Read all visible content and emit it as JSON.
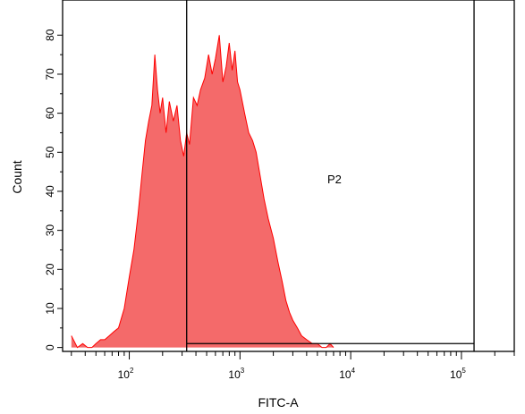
{
  "chart_data": {
    "type": "area",
    "xlabel": "FITC-A",
    "ylabel": "Count",
    "x_scale": "log",
    "xlim": [
      25,
      300000
    ],
    "ylim": [
      -1,
      89
    ],
    "y_ticks": [
      0,
      10,
      20,
      30,
      40,
      50,
      60,
      70,
      80
    ],
    "y_tick_labels": [
      "0",
      "10",
      "20",
      "30",
      "40",
      "50",
      "60",
      "70",
      "80"
    ],
    "x_ticks": [
      {
        "value": 100,
        "base": "10",
        "exp": "2"
      },
      {
        "value": 1000,
        "base": "10",
        "exp": "3"
      },
      {
        "value": 10000,
        "base": "10",
        "exp": "4"
      },
      {
        "value": 100000,
        "base": "10",
        "exp": "5"
      }
    ],
    "series": [
      {
        "fill_color": "#f46a6a",
        "line_color": "#ff0000",
        "x": [
          30,
          34,
          38,
          42,
          46,
          50,
          55,
          60,
          66,
          72,
          80,
          90,
          100,
          110,
          120,
          130,
          140,
          150,
          160,
          170,
          180,
          190,
          200,
          215,
          230,
          250,
          270,
          290,
          310,
          330,
          350,
          380,
          410,
          440,
          480,
          520,
          560,
          600,
          650,
          700,
          750,
          800,
          850,
          900,
          950,
          1000,
          1100,
          1200,
          1300,
          1400,
          1500,
          1650,
          1800,
          2000,
          2200,
          2400,
          2600,
          2800,
          3000,
          3300,
          3600,
          4000,
          4500,
          5000,
          5500,
          6000,
          6500,
          7000
        ],
        "y": [
          3,
          0,
          1,
          0,
          0,
          1,
          2,
          2,
          3,
          4,
          5,
          10,
          18,
          25,
          34,
          44,
          53,
          58,
          62,
          75,
          66,
          60,
          64,
          55,
          63,
          58,
          62,
          53,
          49,
          55,
          52,
          64,
          62,
          66,
          69,
          75,
          70,
          74,
          80,
          68,
          72,
          78,
          71,
          76,
          68,
          66,
          60,
          55,
          53,
          50,
          45,
          38,
          33,
          28,
          22,
          17,
          12,
          9,
          7,
          5,
          3,
          2,
          1,
          1,
          0,
          0,
          1,
          0
        ]
      }
    ],
    "gate": {
      "label": "P2",
      "x_start": 330,
      "x_end": 130000,
      "line_y": 1,
      "color": "#000000"
    }
  }
}
